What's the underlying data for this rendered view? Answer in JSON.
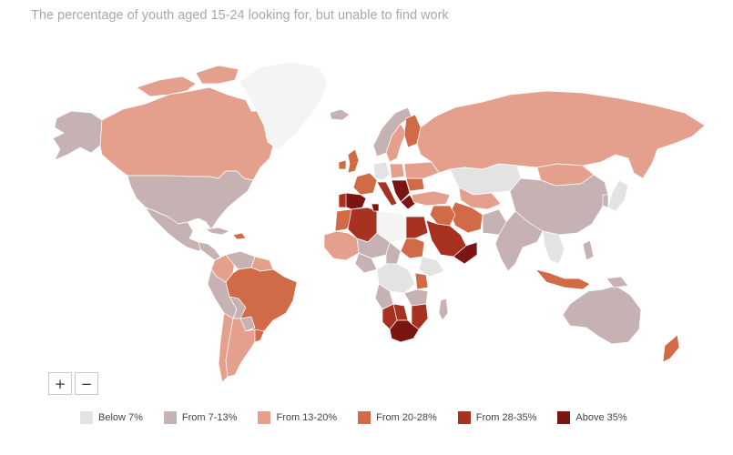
{
  "title": "The percentage of youth aged 15-24 looking for, but unable to find work",
  "colors": {
    "below7": "#e3e3e3",
    "from7_13": "#c6b2b2",
    "from13_20": "#e4a08c",
    "from20_28": "#d16a46",
    "from28_35": "#a83222",
    "above35": "#7b1512",
    "missing": "#f4f4f4"
  },
  "legend": [
    {
      "label": "Below 7%",
      "color": "#e3e3e3"
    },
    {
      "label": "From 7-13%",
      "color": "#c6b2b2"
    },
    {
      "label": "From 13-20%",
      "color": "#e4a08c"
    },
    {
      "label": "From 20-28%",
      "color": "#d16a46"
    },
    {
      "label": "From 28-35%",
      "color": "#a83222"
    },
    {
      "label": "Above 35%",
      "color": "#7b1512"
    }
  ],
  "zoom": {
    "in_label": "+",
    "out_label": "−"
  },
  "icons": {
    "zoom_in": "plus-icon",
    "zoom_out": "minus-icon"
  }
}
